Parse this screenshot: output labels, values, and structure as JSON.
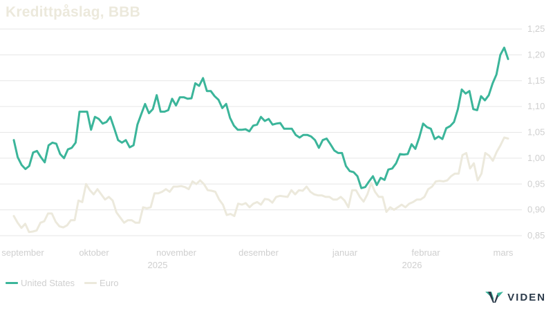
{
  "title": "Kredittpåslag, BBB",
  "brand": {
    "name": "VIDEN",
    "icon": "viden-logo-icon"
  },
  "colors": {
    "us": "#3bb59a",
    "euro": "#ece9dc",
    "grid": "#e6e6e6",
    "tick": "#cfcfcf"
  },
  "chart_data": {
    "type": "line",
    "title": "Kredittpåslag, BBB",
    "xlabel": "",
    "ylabel": "",
    "ylim": [
      0.85,
      1.25
    ],
    "y_ticks": [
      "1,25",
      "1,20",
      "1,15",
      "1,10",
      "1,05",
      "1,00",
      "0,95",
      "0,90",
      "0,85"
    ],
    "y_axis_position": "right",
    "x_tick_labels": [
      "september",
      "oktober",
      "november",
      "desember",
      "januar",
      "februar",
      "mars"
    ],
    "x_year_labels": [
      "2025",
      "2026"
    ],
    "grid": "horizontal",
    "legend_position": "bottom-left",
    "series": [
      {
        "name": "United States",
        "values": [
          1.035,
          1.002,
          0.987,
          0.979,
          0.985,
          1.011,
          1.014,
          1.002,
          0.992,
          1.025,
          1.03,
          1.028,
          1.008,
          1.0,
          1.017,
          1.02,
          1.03,
          1.09,
          1.09,
          1.09,
          1.055,
          1.08,
          1.076,
          1.067,
          1.07,
          1.08,
          1.058,
          1.035,
          1.03,
          1.035,
          1.021,
          1.025,
          1.065,
          1.085,
          1.105,
          1.087,
          1.095,
          1.122,
          1.09,
          1.09,
          1.093,
          1.115,
          1.102,
          1.118,
          1.118,
          1.115,
          1.116,
          1.145,
          1.14,
          1.155,
          1.13,
          1.13,
          1.12,
          1.113,
          1.097,
          1.105,
          1.078,
          1.063,
          1.055,
          1.055,
          1.056,
          1.052,
          1.063,
          1.065,
          1.08,
          1.072,
          1.076,
          1.065,
          1.067,
          1.068,
          1.057,
          1.057,
          1.057,
          1.045,
          1.04,
          1.045,
          1.045,
          1.042,
          1.035,
          1.02,
          1.035,
          1.038,
          1.027,
          1.015,
          1.01,
          1.01,
          0.985,
          0.975,
          0.973,
          0.965,
          0.942,
          0.944,
          0.955,
          0.965,
          0.948,
          0.962,
          0.958,
          0.978,
          0.98,
          0.99,
          1.008,
          1.007,
          1.008,
          1.027,
          1.018,
          1.04,
          1.067,
          1.06,
          1.057,
          1.037,
          1.042,
          1.037,
          1.058,
          1.062,
          1.07,
          1.095,
          1.133,
          1.125,
          1.13,
          1.095,
          1.093,
          1.12,
          1.112,
          1.122,
          1.145,
          1.162,
          1.2,
          1.214,
          1.192
        ]
      },
      {
        "name": "Euro",
        "values": [
          0.888,
          0.875,
          0.865,
          0.873,
          0.857,
          0.858,
          0.86,
          0.875,
          0.878,
          0.893,
          0.893,
          0.877,
          0.868,
          0.866,
          0.87,
          0.88,
          0.88,
          0.918,
          0.915,
          0.95,
          0.938,
          0.93,
          0.94,
          0.93,
          0.92,
          0.925,
          0.918,
          0.895,
          0.885,
          0.875,
          0.88,
          0.88,
          0.875,
          0.875,
          0.905,
          0.903,
          0.905,
          0.932,
          0.932,
          0.935,
          0.94,
          0.935,
          0.945,
          0.945,
          0.946,
          0.944,
          0.94,
          0.955,
          0.95,
          0.957,
          0.95,
          0.938,
          0.937,
          0.935,
          0.92,
          0.91,
          0.89,
          0.892,
          0.888,
          0.912,
          0.91,
          0.913,
          0.905,
          0.912,
          0.915,
          0.91,
          0.921,
          0.92,
          0.914,
          0.925,
          0.927,
          0.926,
          0.925,
          0.938,
          0.93,
          0.938,
          0.937,
          0.945,
          0.935,
          0.93,
          0.928,
          0.928,
          0.925,
          0.925,
          0.92,
          0.92,
          0.925,
          0.918,
          0.905,
          0.938,
          0.938,
          0.925,
          0.916,
          0.93,
          0.952,
          0.935,
          0.925,
          0.925,
          0.896,
          0.905,
          0.9,
          0.905,
          0.91,
          0.905,
          0.912,
          0.915,
          0.92,
          0.92,
          0.925,
          0.94,
          0.945,
          0.955,
          0.956,
          0.955,
          0.957,
          0.965,
          0.97,
          0.97,
          1.006,
          1.01,
          0.98,
          0.99,
          0.957,
          0.97,
          1.01,
          1.005,
          0.995,
          1.012,
          1.025,
          1.04,
          1.038
        ]
      }
    ]
  }
}
